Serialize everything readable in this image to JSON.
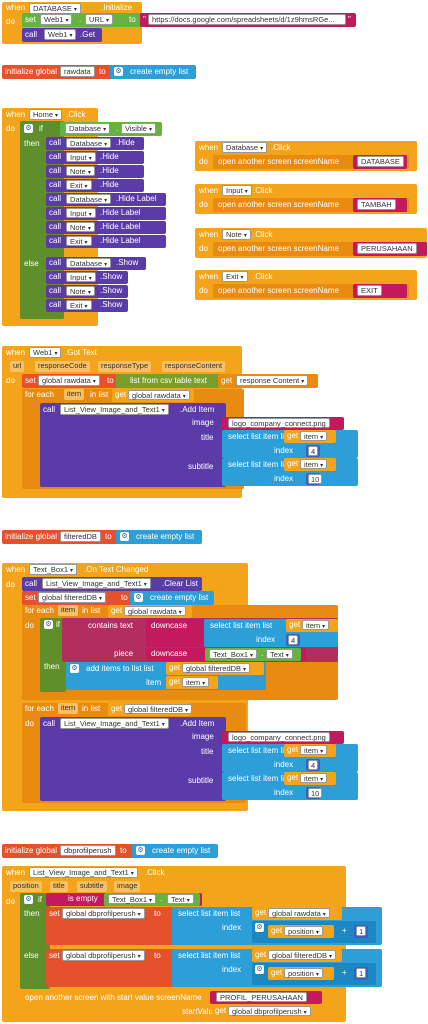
{
  "kw": {
    "when": "when",
    "do": "do",
    "set": "set",
    "call": "call",
    "to": "to",
    "if": "if",
    "then": "then",
    "else": "else",
    "initialize_global": "initialize global",
    "create_empty_list": "create empty list",
    "for_each": "for each",
    "in_list": "in list",
    "item": "item",
    "list": "list",
    "index": "index",
    "get": "get",
    "text": "text",
    "piece": "piece",
    "url": "url",
    "position": "position",
    "title": "title",
    "subtitle": "subtitle",
    "image": "image"
  },
  "b1": {
    "comp": "DATABASE",
    "event": ".Initialize",
    "web": "Web1",
    "prop": "URL",
    "url": "https://docs.google.com/spreadsheets/d/1z9hmsRGe...",
    "get": ".Get"
  },
  "g1": {
    "name": "rawdata"
  },
  "b2": {
    "comp": "Home",
    "event": ".Click",
    "db": "Database",
    "visible": "Visible",
    "hide": [
      [
        "Database",
        ".Hide"
      ],
      [
        "Input",
        ".Hide"
      ],
      [
        "Note",
        ".Hide"
      ],
      [
        "Exit",
        ".Hide"
      ],
      [
        "Database",
        ".Hide Label"
      ],
      [
        "Input",
        ".Hide Label"
      ],
      [
        "Note",
        ".Hide Label"
      ],
      [
        "Exit",
        ".Hide Label"
      ]
    ],
    "show": [
      [
        "Database",
        ".Show"
      ],
      [
        "Input",
        ".Show"
      ],
      [
        "Note",
        ".Show"
      ],
      [
        "Exit",
        ".Show"
      ]
    ]
  },
  "side": [
    {
      "comp": "Database",
      "event": ".Click",
      "action": "open another screen  screenName",
      "screen": "DATABASE"
    },
    {
      "comp": "Input",
      "event": ".Click",
      "action": "open another screen  screenName",
      "screen": "TAMBAH"
    },
    {
      "comp": "Note",
      "event": ".Click",
      "action": "open another screen  screenName",
      "screen": "PERUSAHAAN"
    },
    {
      "comp": "Exit",
      "event": ".Click",
      "action": "open another screen  screenName",
      "screen": "EXIT"
    }
  ],
  "b3": {
    "comp": "Web1",
    "event": ".Got Text",
    "params": [
      "url",
      "responseCode",
      "responseType",
      "responseContent"
    ],
    "var": "global rawdata",
    "csv": "list from csv table  text",
    "getrc": "response Content",
    "grd": "global rawdata",
    "lv": "List_View_Image_and_Text1",
    "add": ".Add Item",
    "img": "logo_company_connect.png",
    "sel": "select list item  list",
    "i1": "4",
    "i2": "10"
  },
  "g2": {
    "name": "filteredDB"
  },
  "b4": {
    "comp": "Text_Box1",
    "event": ".On Text Changed",
    "lv": "List_View_Image_and_Text1",
    "clear": ".Clear List",
    "var": "global filteredDB",
    "grd": "global rawdata",
    "contains": "contains  text",
    "downcase": "downcase",
    "tb": "Text_Box1",
    "tbtext": "Text",
    "additems": "add items to list  list",
    "gfdb": "global filteredDB",
    "add": ".Add Item",
    "img": "logo_company_connect.png",
    "i1": "4",
    "i2": "10"
  },
  "g3": {
    "name": "dbprofilperush"
  },
  "b5": {
    "comp": "List_View_Image_and_Text1",
    "event": ".Click",
    "params": [
      "position",
      "title",
      "subtitle",
      "image"
    ],
    "isempty": "is empty",
    "tb": "Text_Box1",
    "tbtext": "Text",
    "var": "global dbprofilperush",
    "grd": "global rawdata",
    "gfdb": "global filteredDB",
    "plus": "+",
    "one": "1",
    "open": "open another screen with start value  screenName",
    "screen": "PROFIL_PERUSAHAAN",
    "startValue": "startValue",
    "gdb": "global dbprofilperush"
  }
}
